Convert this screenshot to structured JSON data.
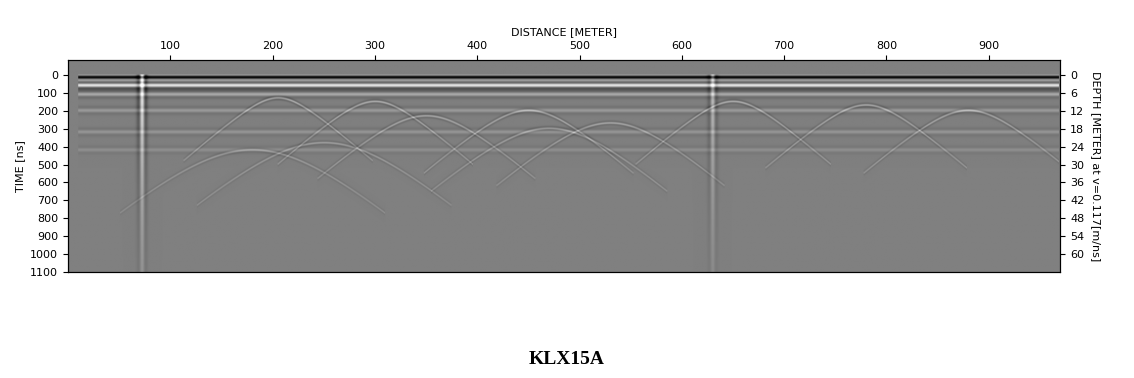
{
  "chart_data": {
    "type": "radargram",
    "title": "KLX15A",
    "x_label": "DISTANCE [METER]",
    "y_label": "TIME [ns]",
    "y2_label": "DEPTH [METER] at v=0.117[m/ns]",
    "xlim": [
      0,
      970
    ],
    "xticks": [
      100,
      200,
      300,
      400,
      500,
      600,
      700,
      800,
      900
    ],
    "ylim": [
      1100,
      -80
    ],
    "yticks": [
      0,
      100,
      200,
      300,
      400,
      500,
      600,
      700,
      800,
      900,
      1000,
      1100
    ],
    "y2lim": [
      66,
      -4.8
    ],
    "y2ticks": [
      0,
      6,
      12,
      18,
      24,
      30,
      36,
      42,
      48,
      54,
      60
    ],
    "color": "gray",
    "profile_distance": [
      10,
      968
    ],
    "reflectors": [
      {
        "time": 15,
        "amplitude": -1.0
      },
      {
        "time": 60,
        "amplitude": 0.9
      },
      {
        "time": 110,
        "amplitude": 0.4
      },
      {
        "time": 200,
        "amplitude": 0.3
      },
      {
        "time": 320,
        "amplitude": 0.3
      },
      {
        "time": 420,
        "amplitude": 0.25
      }
    ],
    "hyperbolas": [
      {
        "distance": 205,
        "time": 130
      },
      {
        "distance": 300,
        "time": 150
      },
      {
        "distance": 350,
        "time": 230
      },
      {
        "distance": 450,
        "time": 200
      },
      {
        "distance": 470,
        "time": 300
      },
      {
        "distance": 530,
        "time": 270
      },
      {
        "distance": 650,
        "time": 150
      },
      {
        "distance": 780,
        "time": 170
      },
      {
        "distance": 880,
        "time": 200
      },
      {
        "distance": 250,
        "time": 380
      },
      {
        "distance": 180,
        "time": 420
      }
    ],
    "vertical_features": [
      {
        "distance": 72,
        "amplitude": 1.0
      },
      {
        "distance": 630,
        "amplitude": 0.6
      }
    ]
  }
}
